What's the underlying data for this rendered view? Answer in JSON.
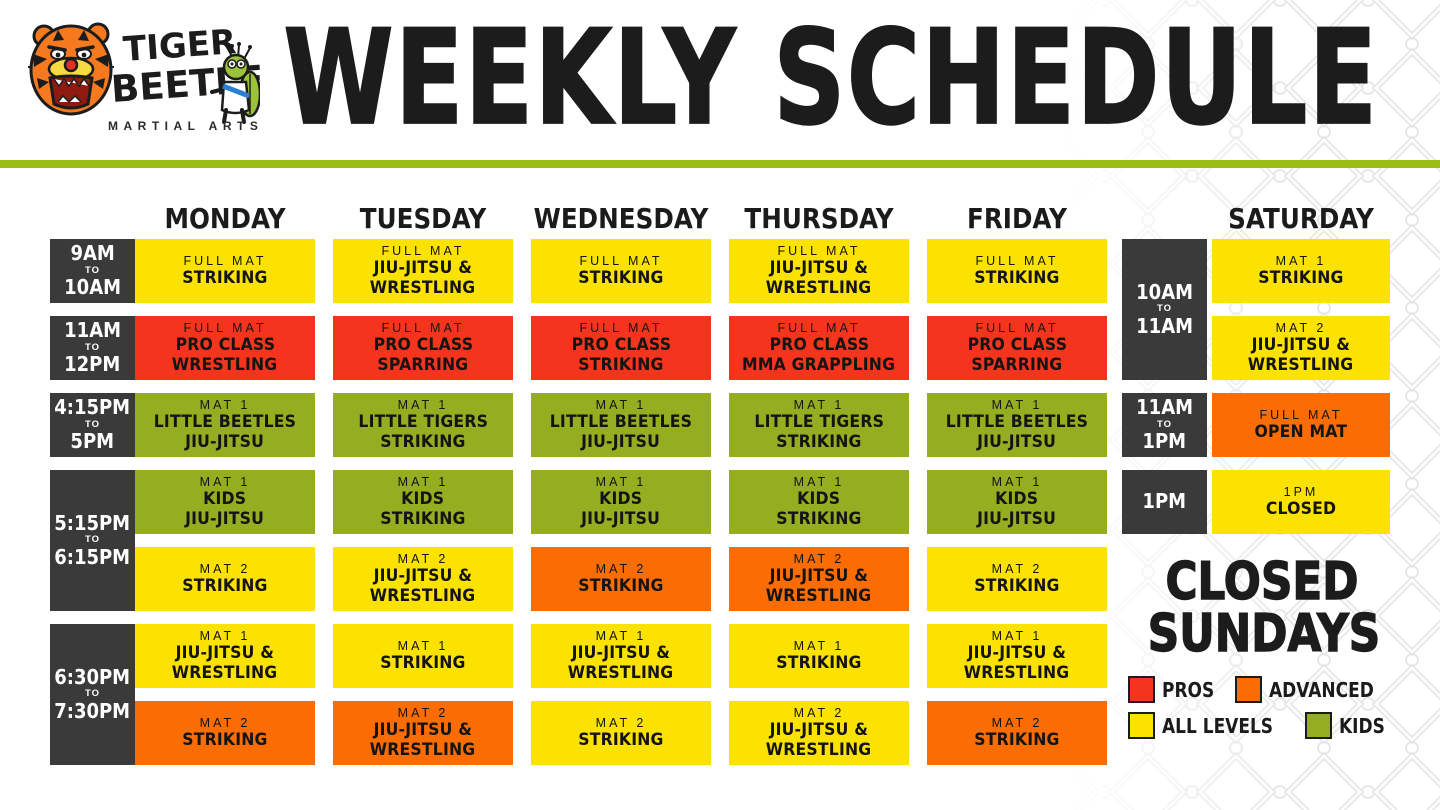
{
  "brand": {
    "word1": "TIGER",
    "word2": "BEETLE",
    "tagline": "MARTIAL ARTS"
  },
  "title": "WEEKLY SCHEDULE",
  "colors": {
    "pros": "#f5341d",
    "advanced": "#fb6c02",
    "all_levels": "#fbe200",
    "kids": "#95ad21",
    "time_block": "#3a3a3a",
    "divider": "#97be11",
    "pattern_line": "#e7e7e7",
    "text": "#1c1c1c"
  },
  "decor": {
    "background_pattern": "chain-link-fence",
    "tiger_icon": "angry-tiger-head",
    "beetle_icon": "beetle-in-gi"
  },
  "schedule": {
    "time_slots": [
      {
        "start": "9AM",
        "sep": "TO",
        "end": "10AM",
        "span": 1
      },
      {
        "start": "11AM",
        "sep": "TO",
        "end": "12PM",
        "span": 1
      },
      {
        "start": "4:15PM",
        "sep": "TO",
        "end": "5PM",
        "span": 1
      },
      {
        "start": "5:15PM",
        "sep": "TO",
        "end": "6:15PM",
        "span": 2
      },
      {
        "start": "6:30PM",
        "sep": "TO",
        "end": "7:30PM",
        "span": 2
      }
    ],
    "days": [
      {
        "label": "MONDAY",
        "classes": [
          {
            "mat": "FULL MAT",
            "name": [
              "STRIKING"
            ],
            "level": "all_levels"
          },
          {
            "mat": "FULL MAT",
            "name": [
              "PRO CLASS",
              "WRESTLING"
            ],
            "level": "pros"
          },
          {
            "mat": "MAT 1",
            "name": [
              "LITTLE BEETLES",
              "JIU-JITSU"
            ],
            "level": "kids"
          },
          {
            "mat": "MAT 1",
            "name": [
              "KIDS",
              "JIU-JITSU"
            ],
            "level": "kids"
          },
          {
            "mat": "MAT 2",
            "name": [
              "STRIKING"
            ],
            "level": "all_levels"
          },
          {
            "mat": "MAT 1",
            "name": [
              "JIU-JITSU &",
              "WRESTLING"
            ],
            "level": "all_levels"
          },
          {
            "mat": "MAT 2",
            "name": [
              "STRIKING"
            ],
            "level": "advanced"
          }
        ]
      },
      {
        "label": "TUESDAY",
        "classes": [
          {
            "mat": "FULL MAT",
            "name": [
              "JIU-JITSU &",
              "WRESTLING"
            ],
            "level": "all_levels"
          },
          {
            "mat": "FULL MAT",
            "name": [
              "PRO CLASS",
              "SPARRING"
            ],
            "level": "pros"
          },
          {
            "mat": "MAT 1",
            "name": [
              "LITTLE TIGERS",
              "STRIKING"
            ],
            "level": "kids"
          },
          {
            "mat": "MAT 1",
            "name": [
              "KIDS",
              "STRIKING"
            ],
            "level": "kids"
          },
          {
            "mat": "MAT 2",
            "name": [
              "JIU-JITSU &",
              "WRESTLING"
            ],
            "level": "all_levels"
          },
          {
            "mat": "MAT 1",
            "name": [
              "STRIKING"
            ],
            "level": "all_levels"
          },
          {
            "mat": "MAT 2",
            "name": [
              "JIU-JITSU &",
              "WRESTLING"
            ],
            "level": "advanced"
          }
        ]
      },
      {
        "label": "WEDNESDAY",
        "classes": [
          {
            "mat": "FULL MAT",
            "name": [
              "STRIKING"
            ],
            "level": "all_levels"
          },
          {
            "mat": "FULL MAT",
            "name": [
              "PRO CLASS",
              "STRIKING"
            ],
            "level": "pros"
          },
          {
            "mat": "MAT 1",
            "name": [
              "LITTLE BEETLES",
              "JIU-JITSU"
            ],
            "level": "kids"
          },
          {
            "mat": "MAT 1",
            "name": [
              "KIDS",
              "JIU-JITSU"
            ],
            "level": "kids"
          },
          {
            "mat": "MAT 2",
            "name": [
              "STRIKING"
            ],
            "level": "advanced"
          },
          {
            "mat": "MAT 1",
            "name": [
              "JIU-JITSU &",
              "WRESTLING"
            ],
            "level": "all_levels"
          },
          {
            "mat": "MAT 2",
            "name": [
              "STRIKING"
            ],
            "level": "all_levels"
          }
        ]
      },
      {
        "label": "THURSDAY",
        "classes": [
          {
            "mat": "FULL MAT",
            "name": [
              "JIU-JITSU &",
              "WRESTLING"
            ],
            "level": "all_levels"
          },
          {
            "mat": "FULL MAT",
            "name": [
              "PRO CLASS",
              "MMA GRAPPLING"
            ],
            "level": "pros"
          },
          {
            "mat": "MAT 1",
            "name": [
              "LITTLE TIGERS",
              "STRIKING"
            ],
            "level": "kids"
          },
          {
            "mat": "MAT 1",
            "name": [
              "KIDS",
              "STRIKING"
            ],
            "level": "kids"
          },
          {
            "mat": "MAT 2",
            "name": [
              "JIU-JITSU &",
              "WRESTLING"
            ],
            "level": "advanced"
          },
          {
            "mat": "MAT 1",
            "name": [
              "STRIKING"
            ],
            "level": "all_levels"
          },
          {
            "mat": "MAT 2",
            "name": [
              "JIU-JITSU &",
              "WRESTLING"
            ],
            "level": "all_levels"
          }
        ]
      },
      {
        "label": "FRIDAY",
        "classes": [
          {
            "mat": "FULL MAT",
            "name": [
              "STRIKING"
            ],
            "level": "all_levels"
          },
          {
            "mat": "FULL MAT",
            "name": [
              "PRO CLASS",
              "SPARRING"
            ],
            "level": "pros"
          },
          {
            "mat": "MAT 1",
            "name": [
              "LITTLE BEETLES",
              "JIU-JITSU"
            ],
            "level": "kids"
          },
          {
            "mat": "MAT 1",
            "name": [
              "KIDS",
              "JIU-JITSU"
            ],
            "level": "kids"
          },
          {
            "mat": "MAT 2",
            "name": [
              "STRIKING"
            ],
            "level": "all_levels"
          },
          {
            "mat": "MAT 1",
            "name": [
              "JIU-JITSU &",
              "WRESTLING"
            ],
            "level": "all_levels"
          },
          {
            "mat": "MAT 2",
            "name": [
              "STRIKING"
            ],
            "level": "advanced"
          }
        ]
      }
    ],
    "saturday": {
      "label": "SATURDAY",
      "time_blocks": [
        {
          "start": "10AM",
          "sep": "TO",
          "end": "11AM",
          "span": 2
        },
        {
          "start": "11AM",
          "sep": "TO",
          "end": "1PM",
          "span": 1
        },
        {
          "start": "1PM",
          "sep": "",
          "end": "",
          "span": 1
        }
      ],
      "classes": [
        {
          "mat": "MAT 1",
          "name": [
            "STRIKING"
          ],
          "level": "all_levels"
        },
        {
          "mat": "MAT 2",
          "name": [
            "JIU-JITSU &",
            "WRESTLING"
          ],
          "level": "all_levels"
        },
        {
          "mat": "FULL MAT",
          "name": [
            "OPEN MAT"
          ],
          "level": "advanced"
        },
        {
          "mat": "1PM",
          "name": [
            "CLOSED"
          ],
          "level": "all_levels"
        }
      ]
    }
  },
  "closed_note": {
    "line1": "CLOSED",
    "line2": "SUNDAYS"
  },
  "legend": [
    {
      "label": "PROS",
      "level": "pros"
    },
    {
      "label": "ADVANCED",
      "level": "advanced"
    },
    {
      "label": "ALL LEVELS",
      "level": "all_levels"
    },
    {
      "label": "KIDS",
      "level": "kids"
    }
  ]
}
